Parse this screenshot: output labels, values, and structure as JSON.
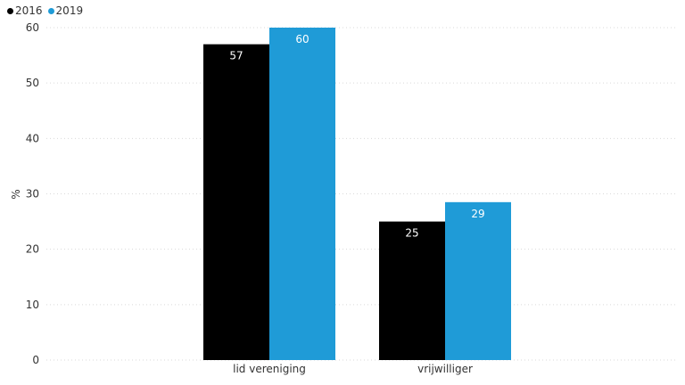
{
  "chart_data": {
    "type": "bar",
    "title": "",
    "xlabel": "",
    "ylabel": "%",
    "ylim": [
      0,
      60
    ],
    "yticks": [
      0,
      10,
      20,
      30,
      40,
      50,
      60
    ],
    "categories": [
      "lid vereniging",
      "vrijwilliger"
    ],
    "series": [
      {
        "name": "2016",
        "color": "#000000",
        "values": [
          57,
          25
        ],
        "labels": [
          "57",
          "25"
        ]
      },
      {
        "name": "2019",
        "color": "#1f9bd7",
        "values": [
          60,
          28.5
        ],
        "labels": [
          "60",
          "29"
        ]
      }
    ],
    "grid": "horizontal dotted",
    "legend_position": "top-left"
  }
}
